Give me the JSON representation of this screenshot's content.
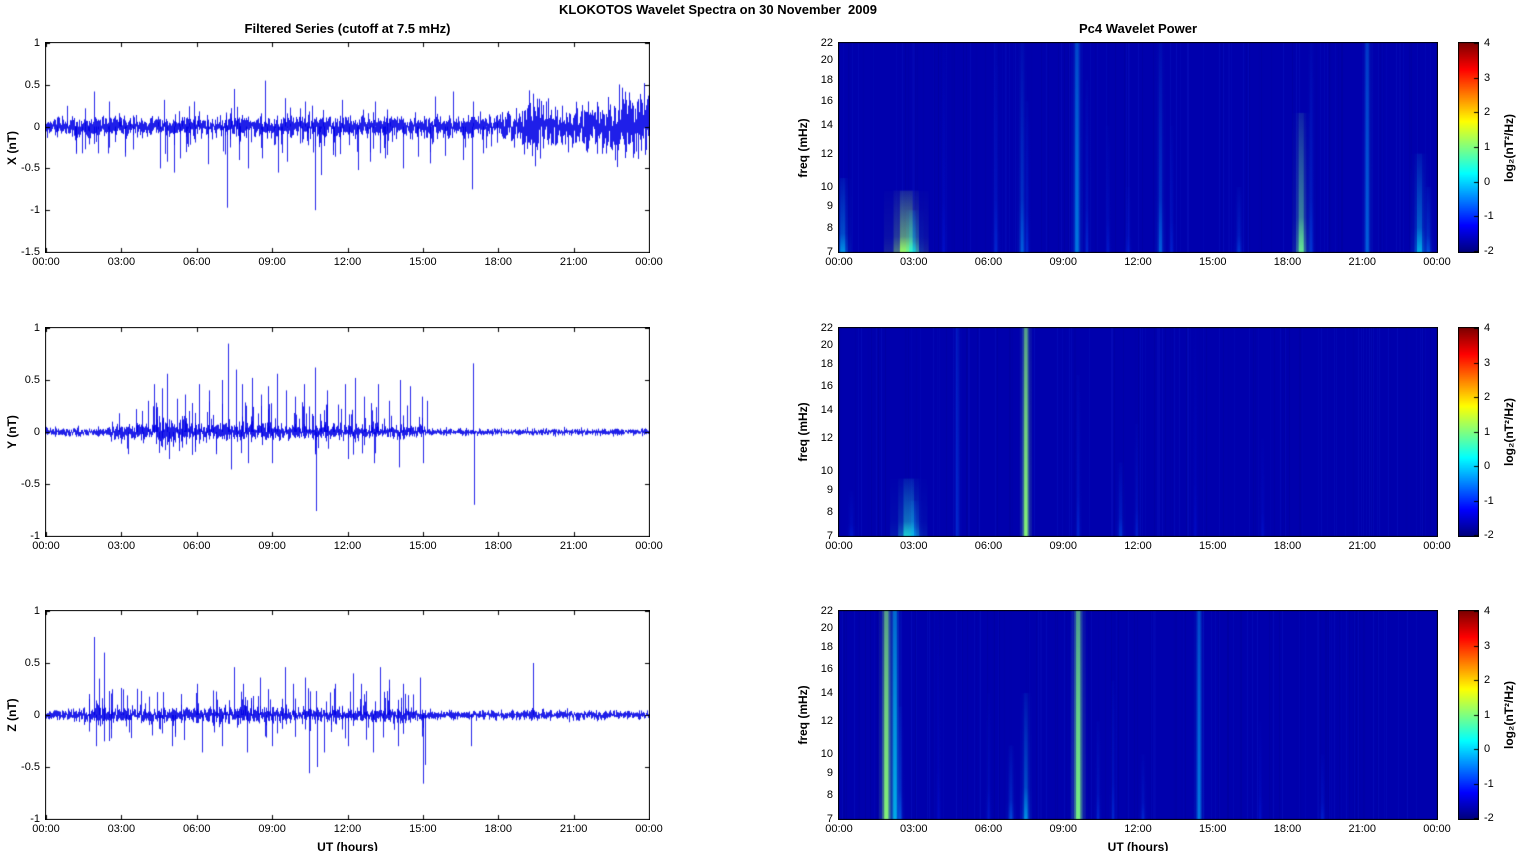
{
  "titles": {
    "figure": "KLOKOTOS Wavelet Spectra on 30 November  2009",
    "left": "Filtered Series (cutoff at 7.5 mHz)",
    "right": "Pc4 Wavelet Power"
  },
  "axes": {
    "x_label": "UT (hours)",
    "x_tick_hours": [
      0,
      3,
      6,
      9,
      12,
      15,
      18,
      21,
      24
    ],
    "x_tick_labels": [
      "00:00",
      "03:00",
      "06:00",
      "09:00",
      "12:00",
      "15:00",
      "18:00",
      "21:00",
      "00:00"
    ],
    "x_range_hours": [
      0,
      24
    ]
  },
  "colorbar": {
    "label": "log₂(nT²/Hz)",
    "tick_values": [
      4,
      3,
      2,
      1,
      0,
      -1,
      -2
    ],
    "tick_labels": [
      "4",
      "3",
      "2",
      "1",
      "0",
      "-1",
      "-2"
    ],
    "range": [
      -2,
      4
    ],
    "colormap": "jet"
  },
  "colors": {
    "series_line": "#0000E6",
    "spectrogram_background": "#0000AD",
    "axis": "#000000"
  },
  "chart_data": [
    {
      "type": "line",
      "row": 0,
      "col": "left",
      "panel": "x-series",
      "ylabel": "X (nT)",
      "ylim": [
        -1.5,
        1
      ],
      "seed": 101,
      "ytick_values": [
        1,
        0.5,
        0,
        -0.5,
        -1,
        -1.5
      ],
      "ytick_labels": [
        "1",
        "0.5",
        "0",
        "-0.5",
        "-1",
        "-1.5"
      ],
      "noise_envelope": [
        [
          0,
          0.085
        ],
        [
          17.8,
          0.085
        ],
        [
          18.3,
          0.12
        ],
        [
          18.9,
          0.14
        ],
        [
          19.05,
          0.28
        ],
        [
          19.6,
          0.3
        ],
        [
          19.85,
          0.16
        ],
        [
          20.6,
          0.15
        ],
        [
          21.3,
          0.17
        ],
        [
          22.0,
          0.2
        ],
        [
          22.6,
          0.26
        ],
        [
          23.2,
          0.24
        ],
        [
          24,
          0.27
        ]
      ],
      "spikes": [
        [
          2.05,
          -0.32
        ],
        [
          3.15,
          -0.36
        ],
        [
          4.55,
          -0.5
        ],
        [
          4.8,
          -0.42
        ],
        [
          5.1,
          -0.55
        ],
        [
          5.35,
          -0.38
        ],
        [
          6.45,
          -0.45
        ],
        [
          7.2,
          -0.97
        ],
        [
          7.7,
          -0.4
        ],
        [
          8.05,
          -0.5
        ],
        [
          8.6,
          -0.38
        ],
        [
          9.25,
          -0.55
        ],
        [
          9.6,
          -0.42
        ],
        [
          10.7,
          -1.0
        ],
        [
          10.95,
          -0.58
        ],
        [
          11.5,
          -0.36
        ],
        [
          12.4,
          -0.52
        ],
        [
          12.9,
          -0.42
        ],
        [
          13.5,
          -0.38
        ],
        [
          14.2,
          -0.5
        ],
        [
          14.8,
          -0.36
        ],
        [
          15.3,
          -0.44
        ],
        [
          15.9,
          -0.35
        ],
        [
          16.6,
          -0.4
        ],
        [
          16.95,
          -0.75
        ],
        [
          17.4,
          -0.32
        ],
        [
          1.9,
          0.42
        ],
        [
          2.5,
          0.3
        ],
        [
          4.7,
          0.32
        ],
        [
          5.9,
          0.3
        ],
        [
          7.5,
          0.45
        ],
        [
          8.7,
          0.55
        ],
        [
          9.5,
          0.34
        ],
        [
          10.3,
          0.3
        ],
        [
          11.8,
          0.32
        ],
        [
          13.1,
          0.3
        ],
        [
          15.5,
          0.36
        ],
        [
          16.2,
          0.42
        ],
        [
          17.0,
          0.3
        ]
      ],
      "random_spikes": [
        {
          "seed": 11,
          "count": 80,
          "t": [
            0.3,
            18
          ],
          "amp": [
            -0.34,
            -0.1
          ]
        },
        {
          "seed": 12,
          "count": 30,
          "t": [
            0.3,
            18
          ],
          "amp": [
            0.1,
            0.26
          ]
        }
      ]
    },
    {
      "type": "heatmap",
      "row": 0,
      "col": "right",
      "panel": "x-wavelet-power",
      "ylabel": "freq (mHz)",
      "yscale": "log",
      "freq_range": [
        7,
        22
      ],
      "clim": [
        -2,
        4
      ],
      "seed": 201,
      "ytick_values": [
        22,
        20,
        18,
        16,
        14,
        12,
        10,
        9,
        8,
        7
      ],
      "ytick_labels": [
        "22",
        "20",
        "18",
        "16",
        "14",
        "12",
        "10",
        "9",
        "8",
        "7"
      ],
      "events": [
        {
          "t": 0.15,
          "f1": 7,
          "f2": 10.5,
          "i": 0.55,
          "w": 0.12
        },
        {
          "t": 2.7,
          "f1": 7,
          "f2": 9.8,
          "i": 0.95,
          "w": 0.3
        },
        {
          "t": 2.95,
          "f1": 7,
          "f2": 8.8,
          "i": 0.6,
          "w": 0.15
        },
        {
          "t": 4.2,
          "f1": 7,
          "f2": 22,
          "i": 0.22,
          "w": 0.06
        },
        {
          "t": 6.3,
          "f1": 7,
          "f2": 22,
          "i": 0.3,
          "w": 0.06
        },
        {
          "t": 7.35,
          "f1": 7,
          "f2": 22,
          "i": 0.45,
          "w": 0.07
        },
        {
          "t": 7.55,
          "f1": 7,
          "f2": 16,
          "i": 0.3,
          "w": 0.05
        },
        {
          "t": 9.55,
          "f1": 7,
          "f2": 22,
          "i": 0.5,
          "w": 0.08,
          "flat": true
        },
        {
          "t": 9.95,
          "f1": 7,
          "f2": 18,
          "i": 0.3,
          "w": 0.05
        },
        {
          "t": 10.8,
          "f1": 7,
          "f2": 14,
          "i": 0.25,
          "w": 0.05
        },
        {
          "t": 11.6,
          "f1": 7,
          "f2": 10,
          "i": 0.25,
          "w": 0.06
        },
        {
          "t": 12.9,
          "f1": 7,
          "f2": 22,
          "i": 0.45,
          "w": 0.07
        },
        {
          "t": 13.35,
          "f1": 7,
          "f2": 14,
          "i": 0.28,
          "w": 0.05
        },
        {
          "t": 16.05,
          "f1": 7,
          "f2": 10,
          "i": 0.35,
          "w": 0.07
        },
        {
          "t": 18.55,
          "f1": 7,
          "f2": 15,
          "i": 0.85,
          "w": 0.12
        },
        {
          "t": 18.95,
          "f1": 7,
          "f2": 22,
          "i": 0.35,
          "w": 0.06
        },
        {
          "t": 21.2,
          "f1": 7,
          "f2": 22,
          "i": 0.45,
          "w": 0.07,
          "flat": true
        },
        {
          "t": 23.3,
          "f1": 7,
          "f2": 12,
          "i": 0.6,
          "w": 0.12
        },
        {
          "t": 23.65,
          "f1": 7,
          "f2": 10,
          "i": 0.4,
          "w": 0.08
        }
      ]
    },
    {
      "type": "line",
      "row": 1,
      "col": "left",
      "panel": "y-series",
      "ylabel": "Y (nT)",
      "ylim": [
        -1,
        1
      ],
      "seed": 102,
      "ytick_values": [
        1,
        0.5,
        0,
        -0.5,
        -1
      ],
      "ytick_labels": [
        "1",
        "0.5",
        "0",
        "-0.5",
        "-1"
      ],
      "noise_envelope": [
        [
          0,
          0.028
        ],
        [
          2.4,
          0.032
        ],
        [
          2.7,
          0.07
        ],
        [
          3.1,
          0.05
        ],
        [
          4.4,
          0.07
        ],
        [
          5.0,
          0.09
        ],
        [
          5.6,
          0.06
        ],
        [
          9.0,
          0.055
        ],
        [
          11.0,
          0.05
        ],
        [
          14.8,
          0.045
        ],
        [
          15.3,
          0.022
        ],
        [
          24,
          0.024
        ]
      ],
      "spikes": [
        [
          2.9,
          0.18
        ],
        [
          3.6,
          0.22
        ],
        [
          4.05,
          0.3
        ],
        [
          4.3,
          0.46
        ],
        [
          4.6,
          0.42
        ],
        [
          4.8,
          0.56
        ],
        [
          5.2,
          0.32
        ],
        [
          5.55,
          0.36
        ],
        [
          6.1,
          0.46
        ],
        [
          6.5,
          0.4
        ],
        [
          7.0,
          0.5
        ],
        [
          7.25,
          0.85
        ],
        [
          7.55,
          0.6
        ],
        [
          7.8,
          0.46
        ],
        [
          8.2,
          0.52
        ],
        [
          8.55,
          0.36
        ],
        [
          8.85,
          0.44
        ],
        [
          9.2,
          0.56
        ],
        [
          9.55,
          0.4
        ],
        [
          9.9,
          0.34
        ],
        [
          10.25,
          0.46
        ],
        [
          10.7,
          0.62
        ],
        [
          11.2,
          0.4
        ],
        [
          11.9,
          0.46
        ],
        [
          12.3,
          0.52
        ],
        [
          12.65,
          0.34
        ],
        [
          13.2,
          0.46
        ],
        [
          13.65,
          0.3
        ],
        [
          14.1,
          0.5
        ],
        [
          14.5,
          0.44
        ],
        [
          14.95,
          0.34
        ],
        [
          15.15,
          0.3
        ],
        [
          17.0,
          0.66
        ],
        [
          4.9,
          -0.26
        ],
        [
          5.8,
          -0.22
        ],
        [
          7.35,
          -0.36
        ],
        [
          8.05,
          -0.3
        ],
        [
          9.0,
          -0.3
        ],
        [
          10.75,
          -0.76
        ],
        [
          12.0,
          -0.26
        ],
        [
          13.05,
          -0.3
        ],
        [
          14.05,
          -0.34
        ],
        [
          15.0,
          -0.3
        ],
        [
          17.05,
          -0.7
        ]
      ],
      "random_spikes": [
        {
          "seed": 21,
          "count": 70,
          "t": [
            3.2,
            15.3
          ],
          "amp": [
            0.08,
            0.3
          ]
        },
        {
          "seed": 22,
          "count": 25,
          "t": [
            3.2,
            15.3
          ],
          "amp": [
            -0.22,
            -0.08
          ]
        }
      ]
    },
    {
      "type": "heatmap",
      "row": 1,
      "col": "right",
      "panel": "y-wavelet-power",
      "ylabel": "freq (mHz)",
      "yscale": "log",
      "freq_range": [
        7,
        22
      ],
      "clim": [
        -2,
        4
      ],
      "seed": 202,
      "ytick_values": [
        22,
        20,
        18,
        16,
        14,
        12,
        10,
        9,
        8,
        7
      ],
      "ytick_labels": [
        "22",
        "20",
        "18",
        "16",
        "14",
        "12",
        "10",
        "9",
        "8",
        "7"
      ],
      "events": [
        {
          "t": 0.5,
          "f1": 7,
          "f2": 9,
          "i": 0.25,
          "w": 0.08
        },
        {
          "t": 2.8,
          "f1": 7,
          "f2": 9.6,
          "i": 0.7,
          "w": 0.25
        },
        {
          "t": 3.0,
          "f1": 7,
          "f2": 8.5,
          "i": 0.45,
          "w": 0.12
        },
        {
          "t": 4.75,
          "f1": 7,
          "f2": 22,
          "i": 0.3,
          "w": 0.06,
          "flat": true
        },
        {
          "t": 7.5,
          "f1": 7,
          "f2": 22,
          "i": 0.9,
          "w": 0.08,
          "flat": true
        },
        {
          "t": 9.6,
          "f1": 7,
          "f2": 17,
          "i": 0.3,
          "w": 0.05
        },
        {
          "t": 11.3,
          "f1": 7,
          "f2": 10.5,
          "i": 0.35,
          "w": 0.07
        },
        {
          "t": 11.95,
          "f1": 7,
          "f2": 13,
          "i": 0.28,
          "w": 0.05
        },
        {
          "t": 14.3,
          "f1": 7,
          "f2": 22,
          "i": 0.2,
          "w": 0.05
        },
        {
          "t": 17.0,
          "f1": 7,
          "f2": 12,
          "i": 0.22,
          "w": 0.05
        }
      ]
    },
    {
      "type": "line",
      "row": 2,
      "col": "left",
      "panel": "z-series",
      "ylabel": "Z (nT)",
      "ylim": [
        -1,
        1
      ],
      "seed": 103,
      "ytick_values": [
        1,
        0.5,
        0,
        -0.5,
        -1
      ],
      "ytick_labels": [
        "1",
        "0.5",
        "0",
        "-0.5",
        "-1"
      ],
      "noise_envelope": [
        [
          0,
          0.03
        ],
        [
          1.7,
          0.05
        ],
        [
          2.1,
          0.065
        ],
        [
          2.6,
          0.055
        ],
        [
          3.2,
          0.045
        ],
        [
          7.5,
          0.055
        ],
        [
          9.8,
          0.05
        ],
        [
          14.8,
          0.045
        ],
        [
          15.3,
          0.028
        ],
        [
          18.9,
          0.03
        ],
        [
          19.5,
          0.035
        ],
        [
          24,
          0.028
        ]
      ],
      "spikes": [
        [
          1.9,
          0.75
        ],
        [
          2.1,
          0.35
        ],
        [
          2.3,
          0.6
        ],
        [
          3.0,
          0.26
        ],
        [
          4.4,
          0.22
        ],
        [
          6.0,
          0.3
        ],
        [
          7.5,
          0.46
        ],
        [
          7.85,
          0.3
        ],
        [
          8.5,
          0.36
        ],
        [
          9.5,
          0.46
        ],
        [
          9.85,
          0.3
        ],
        [
          10.3,
          0.36
        ],
        [
          11.5,
          0.3
        ],
        [
          12.2,
          0.4
        ],
        [
          12.55,
          0.3
        ],
        [
          13.3,
          0.46
        ],
        [
          13.65,
          0.34
        ],
        [
          14.2,
          0.3
        ],
        [
          14.9,
          0.36
        ],
        [
          19.4,
          0.5
        ],
        [
          2.0,
          -0.3
        ],
        [
          2.5,
          -0.25
        ],
        [
          5.0,
          -0.3
        ],
        [
          6.2,
          -0.36
        ],
        [
          7.0,
          -0.3
        ],
        [
          8.0,
          -0.36
        ],
        [
          9.0,
          -0.3
        ],
        [
          10.45,
          -0.56
        ],
        [
          10.8,
          -0.5
        ],
        [
          11.05,
          -0.36
        ],
        [
          12.0,
          -0.3
        ],
        [
          13.0,
          -0.36
        ],
        [
          14.0,
          -0.3
        ],
        [
          15.0,
          -0.66
        ],
        [
          15.1,
          -0.48
        ],
        [
          16.9,
          -0.3
        ]
      ],
      "random_spikes": [
        {
          "seed": 31,
          "count": 60,
          "t": [
            1.6,
            15.2
          ],
          "amp": [
            0.08,
            0.26
          ]
        },
        {
          "seed": 32,
          "count": 40,
          "t": [
            1.6,
            15.2
          ],
          "amp": [
            -0.26,
            -0.08
          ]
        }
      ]
    },
    {
      "type": "heatmap",
      "row": 2,
      "col": "right",
      "panel": "z-wavelet-power",
      "ylabel": "freq (mHz)",
      "yscale": "log",
      "freq_range": [
        7,
        22
      ],
      "clim": [
        -2,
        4
      ],
      "seed": 203,
      "ytick_values": [
        22,
        20,
        18,
        16,
        14,
        12,
        10,
        9,
        8,
        7
      ],
      "ytick_labels": [
        "22",
        "20",
        "18",
        "16",
        "14",
        "12",
        "10",
        "9",
        "8",
        "7"
      ],
      "events": [
        {
          "t": 1.9,
          "f1": 7,
          "f2": 22,
          "i": 0.9,
          "w": 0.1,
          "flat": true
        },
        {
          "t": 2.25,
          "f1": 7,
          "f2": 22,
          "i": 0.6,
          "w": 0.08,
          "flat": true
        },
        {
          "t": 2.45,
          "f1": 7,
          "f2": 13,
          "i": 0.4,
          "w": 0.06
        },
        {
          "t": 4.0,
          "f1": 7,
          "f2": 22,
          "i": 0.2,
          "w": 0.05
        },
        {
          "t": 6.0,
          "f1": 7,
          "f2": 14,
          "i": 0.25,
          "w": 0.05
        },
        {
          "t": 6.9,
          "f1": 7,
          "f2": 10.5,
          "i": 0.4,
          "w": 0.07
        },
        {
          "t": 7.5,
          "f1": 7,
          "f2": 14,
          "i": 0.55,
          "w": 0.08
        },
        {
          "t": 9.6,
          "f1": 7,
          "f2": 22,
          "i": 0.88,
          "w": 0.1,
          "flat": true
        },
        {
          "t": 10.4,
          "f1": 7,
          "f2": 12,
          "i": 0.3,
          "w": 0.05
        },
        {
          "t": 11.0,
          "f1": 7,
          "f2": 15,
          "i": 0.3,
          "w": 0.05
        },
        {
          "t": 12.2,
          "f1": 7,
          "f2": 10,
          "i": 0.3,
          "w": 0.06
        },
        {
          "t": 14.45,
          "f1": 7,
          "f2": 22,
          "i": 0.5,
          "w": 0.07,
          "flat": true
        },
        {
          "t": 16.9,
          "f1": 7,
          "f2": 12,
          "i": 0.22,
          "w": 0.05
        },
        {
          "t": 19.4,
          "f1": 7,
          "f2": 10,
          "i": 0.28,
          "w": 0.06
        }
      ]
    }
  ]
}
